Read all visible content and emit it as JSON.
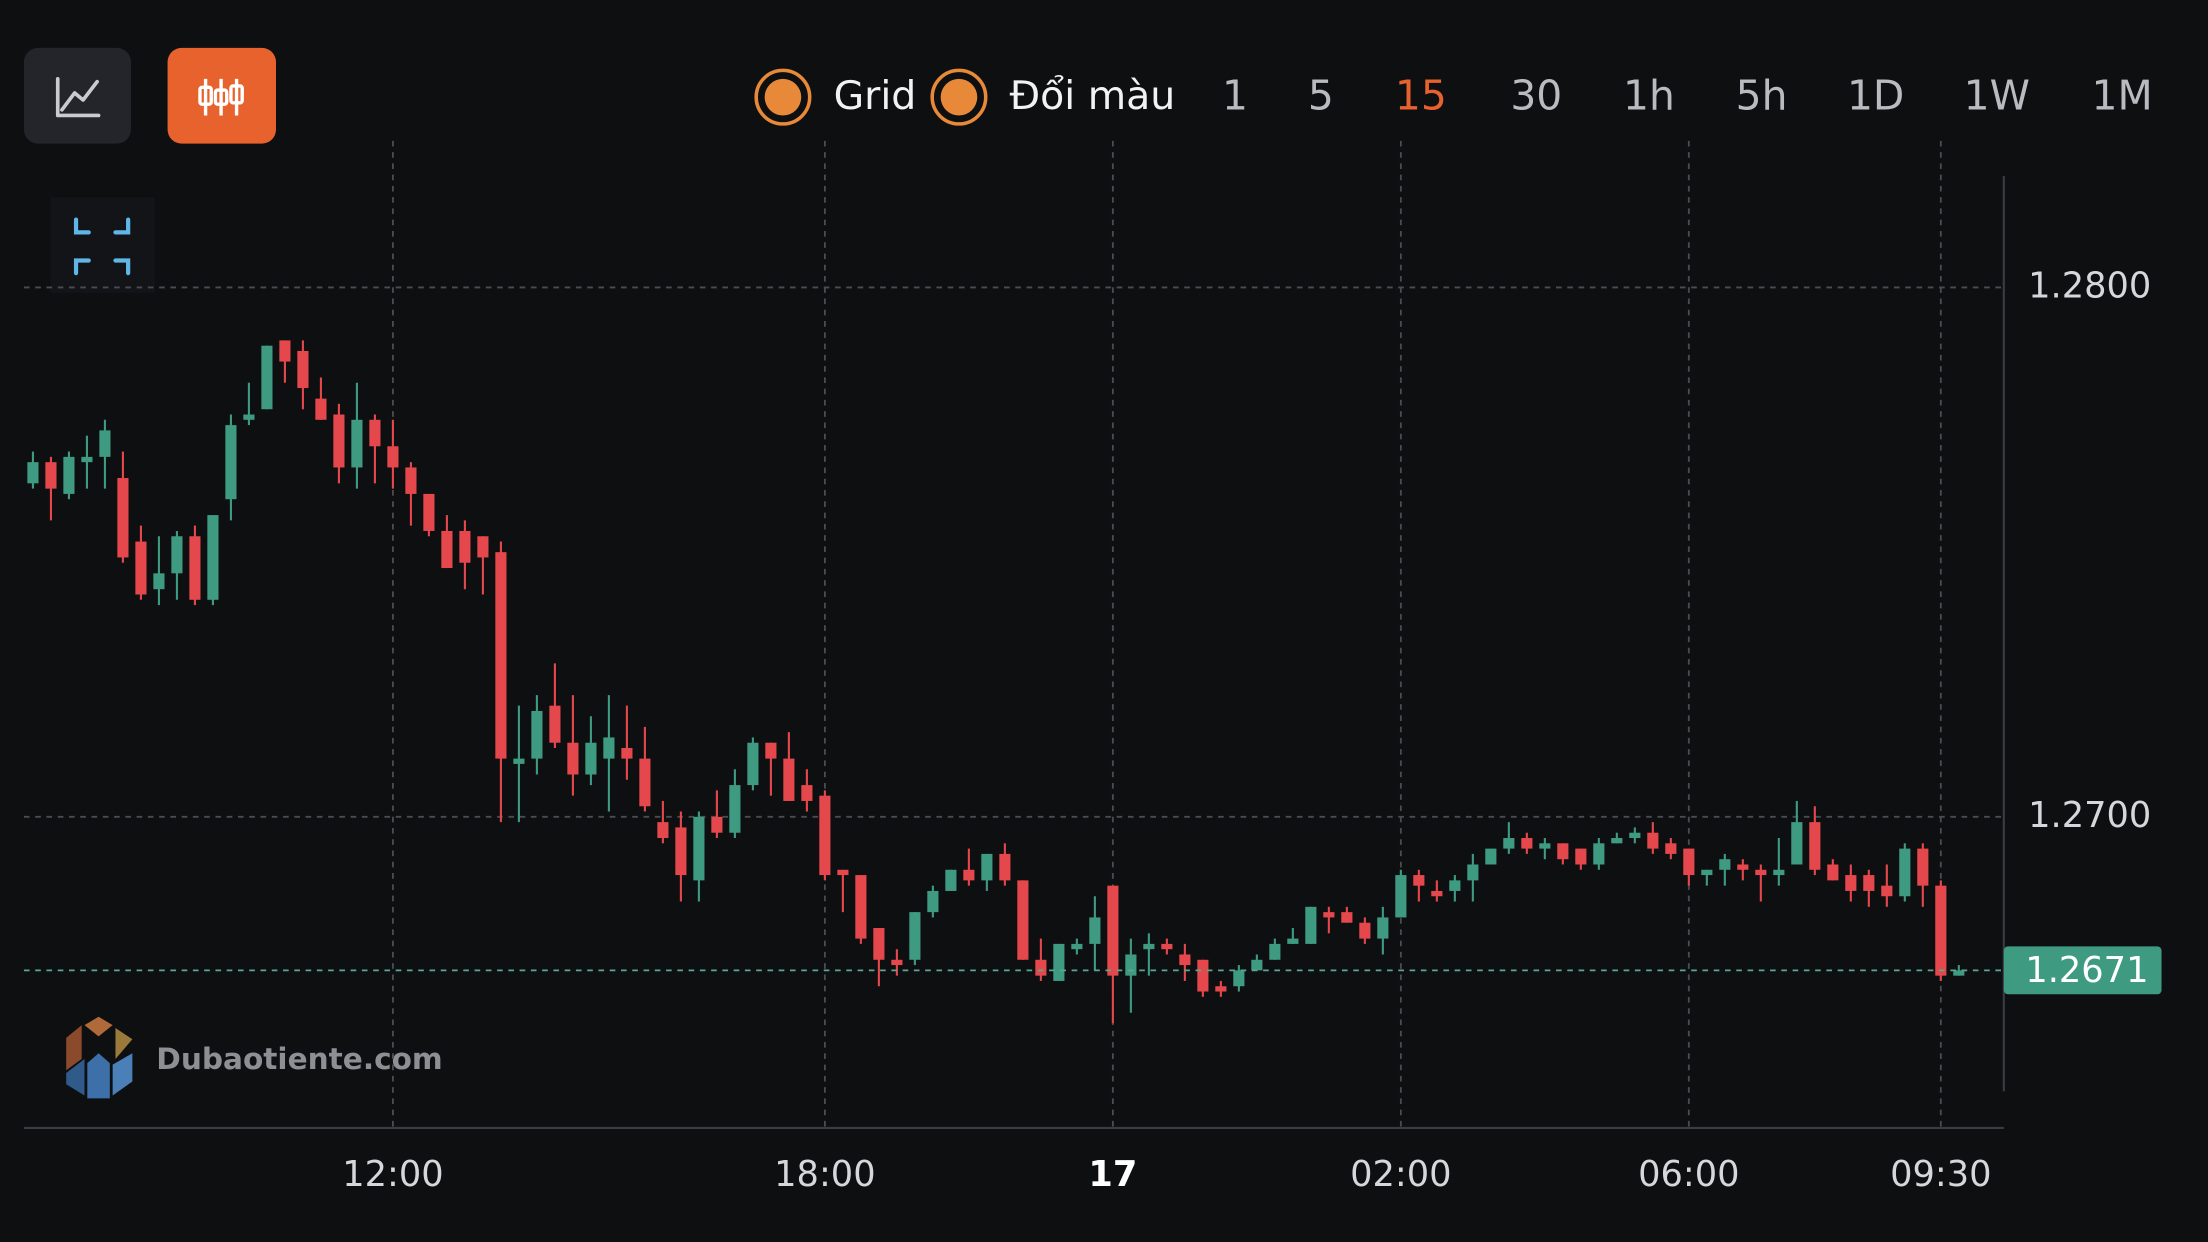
{
  "toolbar": {
    "options": [
      "Grid",
      "Đổi màu"
    ],
    "timeframes": [
      "1",
      "5",
      "15",
      "30",
      "1h",
      "5h",
      "1D",
      "1W",
      "1M"
    ],
    "active_timeframe": "15"
  },
  "watermark": "Dubaotiente.com",
  "chart_data": {
    "type": "candlestick",
    "up_color": "#3f9a82",
    "down_color": "#e4474c",
    "grid": true,
    "xlim": [
      -0.5,
      109.5
    ],
    "xticks": [
      {
        "value": 20,
        "label": "12:00"
      },
      {
        "value": 44,
        "label": "18:00"
      },
      {
        "value": 60,
        "label": "17"
      },
      {
        "value": 76,
        "label": "02:00"
      },
      {
        "value": 92,
        "label": "06:00"
      },
      {
        "value": 106,
        "label": "09:30"
      }
    ],
    "ylim": [
      1.26415,
      1.28277
    ],
    "yticks": [
      {
        "value": 1.28,
        "label": "1.2800"
      },
      {
        "value": 1.27,
        "label": "1.2700"
      }
    ],
    "last_price": {
      "value": 1.2671,
      "label": "1.2671"
    },
    "candles": [
      [
        1.2763,
        1.2769,
        1.2762,
        1.2767
      ],
      [
        1.2767,
        1.2768,
        1.2756,
        1.2762
      ],
      [
        1.2761,
        1.2769,
        1.276,
        1.2768
      ],
      [
        1.2767,
        1.2772,
        1.2762,
        1.2768
      ],
      [
        1.2768,
        1.2775,
        1.2762,
        1.2773
      ],
      [
        1.2764,
        1.2769,
        1.2748,
        1.2749
      ],
      [
        1.2752,
        1.2755,
        1.2741,
        1.2742
      ],
      [
        1.2743,
        1.2753,
        1.274,
        1.2746
      ],
      [
        1.2746,
        1.2754,
        1.2741,
        1.2753
      ],
      [
        1.2753,
        1.2755,
        1.274,
        1.2741
      ],
      [
        1.2741,
        1.2757,
        1.274,
        1.2757
      ],
      [
        1.276,
        1.2776,
        1.2756,
        1.2774
      ],
      [
        1.2775,
        1.2782,
        1.2774,
        1.2776
      ],
      [
        1.2777,
        1.2789,
        1.2777,
        1.2789
      ],
      [
        1.279,
        1.279,
        1.2782,
        1.2786
      ],
      [
        1.2788,
        1.279,
        1.2777,
        1.2781
      ],
      [
        1.2779,
        1.2783,
        1.2775,
        1.2775
      ],
      [
        1.2776,
        1.2778,
        1.2763,
        1.2766
      ],
      [
        1.2766,
        1.2782,
        1.2762,
        1.2775
      ],
      [
        1.2775,
        1.2776,
        1.2763,
        1.277
      ],
      [
        1.277,
        1.2775,
        1.2762,
        1.2766
      ],
      [
        1.2766,
        1.2767,
        1.2755,
        1.2761
      ],
      [
        1.2761,
        1.2761,
        1.2753,
        1.2754
      ],
      [
        1.2754,
        1.2757,
        1.2747,
        1.2747
      ],
      [
        1.2754,
        1.2756,
        1.2743,
        1.2748
      ],
      [
        1.2753,
        1.2753,
        1.2742,
        1.2749
      ],
      [
        1.275,
        1.2752,
        1.2699,
        1.2711
      ],
      [
        1.271,
        1.2721,
        1.2699,
        1.2711
      ],
      [
        1.2711,
        1.2723,
        1.2708,
        1.272
      ],
      [
        1.2721,
        1.2729,
        1.2713,
        1.2714
      ],
      [
        1.2714,
        1.2723,
        1.2704,
        1.2708
      ],
      [
        1.2708,
        1.2719,
        1.2706,
        1.2714
      ],
      [
        1.2711,
        1.2723,
        1.2701,
        1.2715
      ],
      [
        1.2713,
        1.2721,
        1.2707,
        1.2711
      ],
      [
        1.2711,
        1.2717,
        1.2701,
        1.2702
      ],
      [
        1.2699,
        1.2703,
        1.2695,
        1.2696
      ],
      [
        1.2698,
        1.2701,
        1.2684,
        1.2689
      ],
      [
        1.2688,
        1.2701,
        1.2684,
        1.27
      ],
      [
        1.27,
        1.2705,
        1.2696,
        1.2697
      ],
      [
        1.2697,
        1.2709,
        1.2696,
        1.2706
      ],
      [
        1.2706,
        1.2715,
        1.2705,
        1.2714
      ],
      [
        1.2714,
        1.2714,
        1.2704,
        1.2711
      ],
      [
        1.2711,
        1.2716,
        1.2703,
        1.2703
      ],
      [
        1.2706,
        1.2709,
        1.2701,
        1.2703
      ],
      [
        1.2704,
        1.2705,
        1.2688,
        1.2689
      ],
      [
        1.269,
        1.269,
        1.2682,
        1.2689
      ],
      [
        1.2689,
        1.2689,
        1.2676,
        1.2677
      ],
      [
        1.2679,
        1.2679,
        1.2668,
        1.2673
      ],
      [
        1.2673,
        1.2675,
        1.267,
        1.2672
      ],
      [
        1.2673,
        1.2682,
        1.2672,
        1.2682
      ],
      [
        1.2682,
        1.2687,
        1.2681,
        1.2686
      ],
      [
        1.2686,
        1.269,
        1.2686,
        1.269
      ],
      [
        1.269,
        1.2694,
        1.2687,
        1.2688
      ],
      [
        1.2688,
        1.2693,
        1.2686,
        1.2693
      ],
      [
        1.2693,
        1.2695,
        1.2687,
        1.2688
      ],
      [
        1.2688,
        1.2688,
        1.2673,
        1.2673
      ],
      [
        1.2673,
        1.2677,
        1.2669,
        1.267
      ],
      [
        1.2669,
        1.2676,
        1.2669,
        1.2676
      ],
      [
        1.2675,
        1.2677,
        1.2674,
        1.2676
      ],
      [
        1.2676,
        1.2685,
        1.2671,
        1.2681
      ],
      [
        1.2687,
        1.2687,
        1.2661,
        1.267
      ],
      [
        1.267,
        1.2677,
        1.2663,
        1.2674
      ],
      [
        1.2675,
        1.2678,
        1.267,
        1.2676
      ],
      [
        1.2676,
        1.2677,
        1.2674,
        1.2675
      ],
      [
        1.2674,
        1.2676,
        1.2669,
        1.2672
      ],
      [
        1.2673,
        1.2673,
        1.2666,
        1.2667
      ],
      [
        1.2668,
        1.2669,
        1.2666,
        1.2667
      ],
      [
        1.2668,
        1.2672,
        1.2667,
        1.2671
      ],
      [
        1.2671,
        1.2674,
        1.2671,
        1.2673
      ],
      [
        1.2673,
        1.2677,
        1.2673,
        1.2676
      ],
      [
        1.2676,
        1.2679,
        1.2676,
        1.2677
      ],
      [
        1.2676,
        1.2683,
        1.2676,
        1.2683
      ],
      [
        1.2682,
        1.2683,
        1.2678,
        1.2681
      ],
      [
        1.2682,
        1.2683,
        1.268,
        1.268
      ],
      [
        1.268,
        1.2681,
        1.2676,
        1.2677
      ],
      [
        1.2677,
        1.2683,
        1.2674,
        1.2681
      ],
      [
        1.2681,
        1.269,
        1.2681,
        1.2689
      ],
      [
        1.2689,
        1.269,
        1.2684,
        1.2687
      ],
      [
        1.2686,
        1.2688,
        1.2684,
        1.2685
      ],
      [
        1.2686,
        1.2689,
        1.2684,
        1.2688
      ],
      [
        1.2688,
        1.2693,
        1.2684,
        1.2691
      ],
      [
        1.2691,
        1.2694,
        1.2691,
        1.2694
      ],
      [
        1.2694,
        1.2699,
        1.2693,
        1.2696
      ],
      [
        1.2696,
        1.2697,
        1.2693,
        1.2694
      ],
      [
        1.2694,
        1.2696,
        1.2692,
        1.2695
      ],
      [
        1.2695,
        1.2695,
        1.2691,
        1.2692
      ],
      [
        1.2694,
        1.2694,
        1.269,
        1.2691
      ],
      [
        1.2691,
        1.2696,
        1.269,
        1.2695
      ],
      [
        1.2695,
        1.2697,
        1.2695,
        1.2696
      ],
      [
        1.2696,
        1.2698,
        1.2695,
        1.2697
      ],
      [
        1.2697,
        1.2699,
        1.2693,
        1.2694
      ],
      [
        1.2695,
        1.2696,
        1.2692,
        1.2693
      ],
      [
        1.2694,
        1.2694,
        1.2687,
        1.2689
      ],
      [
        1.2689,
        1.269,
        1.2687,
        1.269
      ],
      [
        1.269,
        1.2693,
        1.2687,
        1.2692
      ],
      [
        1.2691,
        1.2692,
        1.2688,
        1.269
      ],
      [
        1.269,
        1.2691,
        1.2684,
        1.2689
      ],
      [
        1.2689,
        1.2696,
        1.2687,
        1.269
      ],
      [
        1.2691,
        1.2703,
        1.2691,
        1.2699
      ],
      [
        1.2699,
        1.2702,
        1.2689,
        1.269
      ],
      [
        1.2691,
        1.2692,
        1.2688,
        1.2688
      ],
      [
        1.2689,
        1.2691,
        1.2684,
        1.2686
      ],
      [
        1.2689,
        1.269,
        1.2683,
        1.2686
      ],
      [
        1.2687,
        1.2691,
        1.2683,
        1.2685
      ],
      [
        1.2685,
        1.2695,
        1.2684,
        1.2694
      ],
      [
        1.2694,
        1.2695,
        1.2683,
        1.2687
      ],
      [
        1.2687,
        1.2688,
        1.2669,
        1.267
      ],
      [
        1.267,
        1.2672,
        1.267,
        1.2671
      ]
    ]
  }
}
